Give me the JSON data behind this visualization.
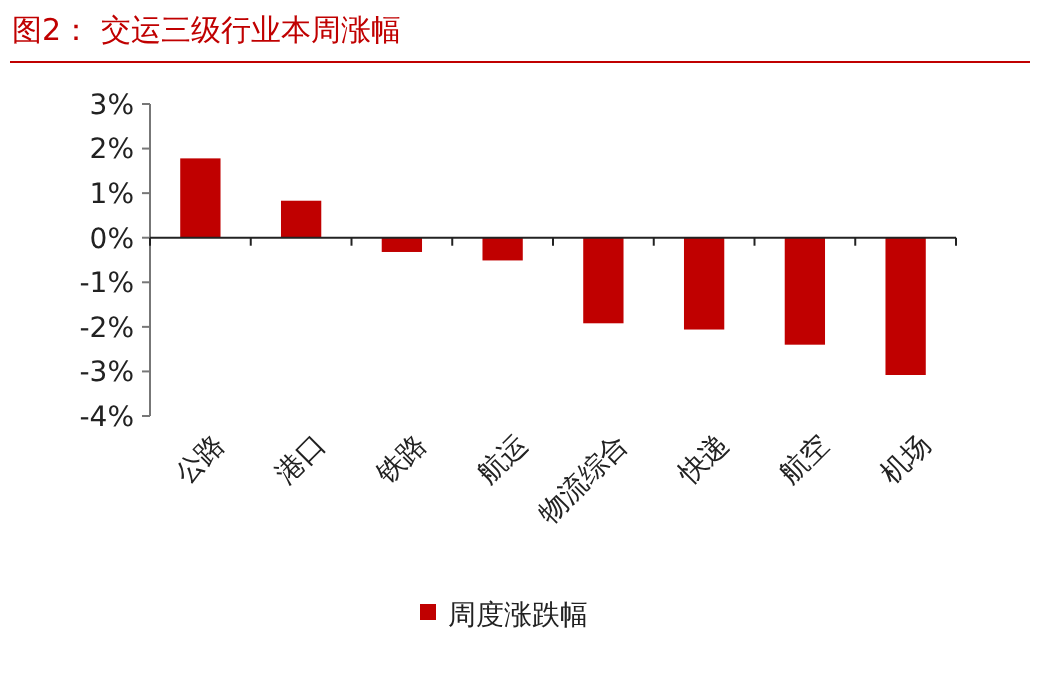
{
  "chart_data": {
    "type": "bar",
    "title": "图2：  交运三级行业本周涨幅",
    "categories": [
      "公路",
      "港口",
      "铁路",
      "航运",
      "物流综合",
      "快递",
      "航空",
      "机场"
    ],
    "series": [
      {
        "name": "周度涨跌幅",
        "color": "#c00000",
        "values": [
          1.78,
          0.83,
          -0.32,
          -0.51,
          -1.92,
          -2.06,
          -2.4,
          -3.08
        ]
      }
    ],
    "ylim": [
      -4,
      3
    ],
    "yticks": [
      {
        "value": 3,
        "label": "3%"
      },
      {
        "value": 2,
        "label": "2%"
      },
      {
        "value": 1,
        "label": "1%"
      },
      {
        "value": 0,
        "label": "0%"
      },
      {
        "value": -1,
        "label": "-1%"
      },
      {
        "value": -2,
        "label": "-2%"
      },
      {
        "value": -3,
        "label": "-3%"
      },
      {
        "value": -4,
        "label": "-4%"
      }
    ],
    "legend": "bottom"
  }
}
